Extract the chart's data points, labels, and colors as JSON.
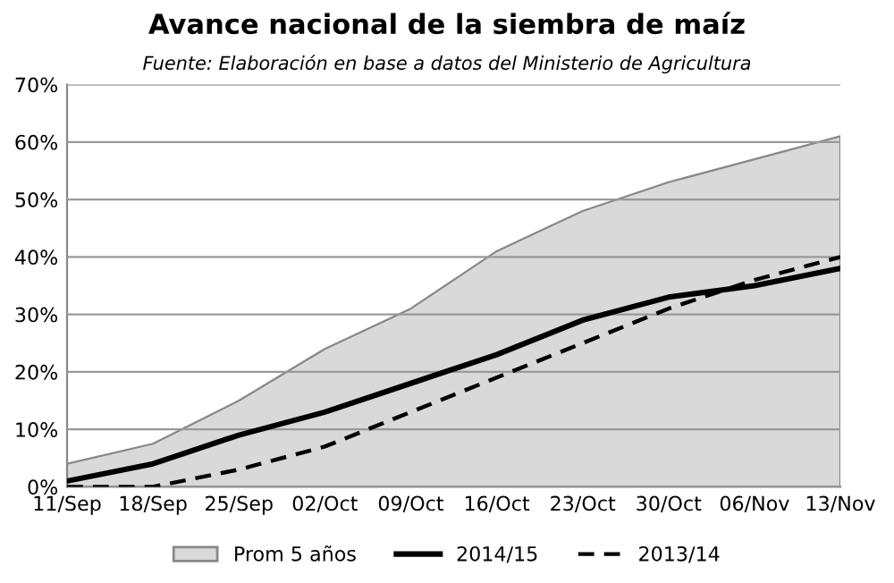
{
  "chart_data": {
    "type": "line",
    "title": "Avance nacional de la siembra de maíz",
    "subtitle": "Fuente: Elaboración en base a datos del Ministerio de Agricultura",
    "categories": [
      "11/Sep",
      "18/Sep",
      "25/Sep",
      "02/Oct",
      "09/Oct",
      "16/Oct",
      "23/Oct",
      "30/Oct",
      "06/Nov",
      "13/Nov"
    ],
    "series": [
      {
        "name": "Prom 5 años",
        "type": "area",
        "color": "#d9d9d9",
        "values": [
          4,
          7.5,
          15,
          24,
          31,
          41,
          48,
          53,
          57,
          61
        ]
      },
      {
        "name": "2014/15",
        "type": "line",
        "color": "#000000",
        "line_style": "solid",
        "values": [
          1,
          4,
          9,
          13,
          18,
          23,
          29,
          33,
          35,
          38
        ]
      },
      {
        "name": "2013/14",
        "type": "line",
        "color": "#000000",
        "line_style": "dashed",
        "values": [
          0,
          0,
          3,
          7,
          13,
          19,
          25,
          31,
          36,
          40
        ]
      }
    ],
    "ylim": [
      0,
      70
    ],
    "yticks": [
      {
        "value": 0,
        "label": "0%"
      },
      {
        "value": 10,
        "label": "10%"
      },
      {
        "value": 20,
        "label": "20%"
      },
      {
        "value": 30,
        "label": "30%"
      },
      {
        "value": 40,
        "label": "40%"
      },
      {
        "value": 50,
        "label": "50%"
      },
      {
        "value": 60,
        "label": "60%"
      },
      {
        "value": 70,
        "label": "70%"
      }
    ],
    "grid": "y",
    "legend": "bottom",
    "marker": "none"
  }
}
